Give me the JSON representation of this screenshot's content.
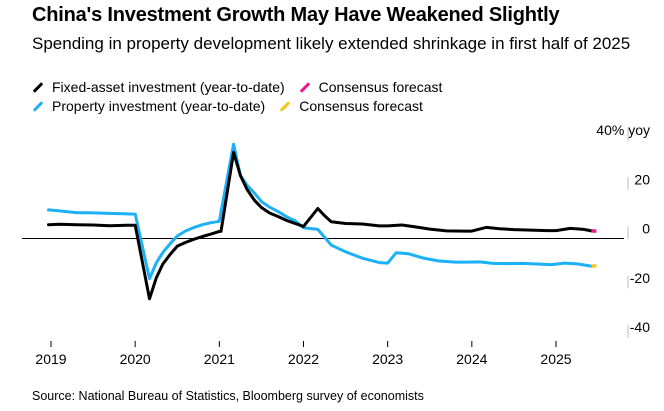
{
  "title": "China's Investment Growth May Have Weakened Slightly",
  "subtitle": "Spending in property development likely extended shrinkage in first half of 2025",
  "legend": [
    [
      {
        "label": "Fixed-asset investment (year-to-date)",
        "color": "#000000"
      },
      {
        "label": "Consensus forecast",
        "color": "#e8198b"
      }
    ],
    [
      {
        "label": "Property investment (year-to-date)",
        "color": "#1cb0f6"
      },
      {
        "label": "Consensus forecast",
        "color": "#f5c518"
      }
    ]
  ],
  "source": "Source: National Bureau of Statistics, Bloomberg survey of economists",
  "chart_data": {
    "type": "line",
    "x_axis": {
      "min": 2019.0,
      "max": 2025.6,
      "ticks": [
        2019,
        2020,
        2021,
        2022,
        2023,
        2024,
        2025
      ],
      "tick_labels": [
        "2019",
        "2020",
        "2021",
        "2022",
        "2023",
        "2024",
        "2025"
      ]
    },
    "y_axis": {
      "min": -40,
      "max": 40,
      "ticks": [
        40,
        20,
        0,
        -20,
        -40
      ],
      "tick_labels": [
        "40% yoy",
        "20",
        "0",
        "-20",
        "-40"
      ],
      "position": "right"
    },
    "series": [
      {
        "name": "Fixed-asset investment (year-to-date)",
        "color": "#000000",
        "points": [
          [
            2018.97,
            5.6
          ],
          [
            2019.1,
            5.8
          ],
          [
            2019.3,
            5.6
          ],
          [
            2019.5,
            5.5
          ],
          [
            2019.7,
            5.2
          ],
          [
            2019.9,
            5.4
          ],
          [
            2020.0,
            5.4
          ],
          [
            2020.17,
            -24.5
          ],
          [
            2020.25,
            -16.1
          ],
          [
            2020.33,
            -10.3
          ],
          [
            2020.42,
            -6.3
          ],
          [
            2020.5,
            -3.1
          ],
          [
            2020.6,
            -1.6
          ],
          [
            2020.7,
            -0.3
          ],
          [
            2020.8,
            0.8
          ],
          [
            2020.9,
            1.8
          ],
          [
            2021.0,
            2.9
          ],
          [
            2021.02,
            2.9
          ],
          [
            2021.17,
            35.0
          ],
          [
            2021.25,
            25.6
          ],
          [
            2021.33,
            19.9
          ],
          [
            2021.42,
            15.4
          ],
          [
            2021.5,
            12.6
          ],
          [
            2021.6,
            10.3
          ],
          [
            2021.7,
            8.9
          ],
          [
            2021.8,
            7.3
          ],
          [
            2021.9,
            6.1
          ],
          [
            2022.0,
            4.9
          ],
          [
            2022.17,
            12.2
          ],
          [
            2022.25,
            9.3
          ],
          [
            2022.33,
            6.8
          ],
          [
            2022.5,
            6.1
          ],
          [
            2022.7,
            5.9
          ],
          [
            2022.9,
            5.1
          ],
          [
            2023.0,
            5.1
          ],
          [
            2023.17,
            5.5
          ],
          [
            2023.33,
            4.7
          ],
          [
            2023.5,
            3.8
          ],
          [
            2023.7,
            3.1
          ],
          [
            2023.9,
            3.0
          ],
          [
            2024.0,
            3.0
          ],
          [
            2024.17,
            4.5
          ],
          [
            2024.33,
            4.0
          ],
          [
            2024.5,
            3.6
          ],
          [
            2024.7,
            3.4
          ],
          [
            2024.9,
            3.2
          ],
          [
            2025.0,
            3.2
          ],
          [
            2025.17,
            4.1
          ],
          [
            2025.33,
            3.7
          ],
          [
            2025.42,
            3.1
          ]
        ],
        "forecast": {
          "color": "#e8198b",
          "points": [
            [
              2025.42,
              3.1
            ],
            [
              2025.48,
              3.0
            ]
          ]
        }
      },
      {
        "name": "Property investment (year-to-date)",
        "color": "#1cb0f6",
        "points": [
          [
            2018.97,
            11.6
          ],
          [
            2019.1,
            11.2
          ],
          [
            2019.3,
            10.5
          ],
          [
            2019.5,
            10.4
          ],
          [
            2019.7,
            10.2
          ],
          [
            2019.9,
            10.0
          ],
          [
            2020.0,
            9.9
          ],
          [
            2020.17,
            -16.3
          ],
          [
            2020.25,
            -10.0
          ],
          [
            2020.33,
            -5.6
          ],
          [
            2020.42,
            -2.0
          ],
          [
            2020.5,
            1.0
          ],
          [
            2020.6,
            3.1
          ],
          [
            2020.7,
            4.5
          ],
          [
            2020.8,
            5.6
          ],
          [
            2020.9,
            6.4
          ],
          [
            2021.0,
            7.0
          ],
          [
            2021.17,
            38.3
          ],
          [
            2021.25,
            25.6
          ],
          [
            2021.33,
            21.6
          ],
          [
            2021.42,
            18.3
          ],
          [
            2021.5,
            15.0
          ],
          [
            2021.6,
            12.7
          ],
          [
            2021.7,
            10.9
          ],
          [
            2021.8,
            8.8
          ],
          [
            2021.9,
            7.2
          ],
          [
            2022.0,
            4.4
          ],
          [
            2022.17,
            3.7
          ],
          [
            2022.33,
            -2.7
          ],
          [
            2022.5,
            -5.4
          ],
          [
            2022.7,
            -8.0
          ],
          [
            2022.9,
            -9.8
          ],
          [
            2023.0,
            -10.0
          ],
          [
            2023.1,
            -5.8
          ],
          [
            2023.25,
            -6.2
          ],
          [
            2023.42,
            -7.9
          ],
          [
            2023.6,
            -9.1
          ],
          [
            2023.8,
            -9.6
          ],
          [
            2023.95,
            -9.6
          ],
          [
            2024.1,
            -9.5
          ],
          [
            2024.25,
            -10.1
          ],
          [
            2024.4,
            -10.2
          ],
          [
            2024.6,
            -10.1
          ],
          [
            2024.8,
            -10.4
          ],
          [
            2024.95,
            -10.6
          ],
          [
            2025.1,
            -10.0
          ],
          [
            2025.25,
            -10.3
          ],
          [
            2025.42,
            -11.2
          ]
        ],
        "forecast": {
          "color": "#f5c518",
          "points": [
            [
              2025.42,
              -11.2
            ],
            [
              2025.48,
              -11.1
            ]
          ]
        }
      }
    ],
    "grid": false,
    "zero_line": true,
    "legend_position": "top-left"
  }
}
